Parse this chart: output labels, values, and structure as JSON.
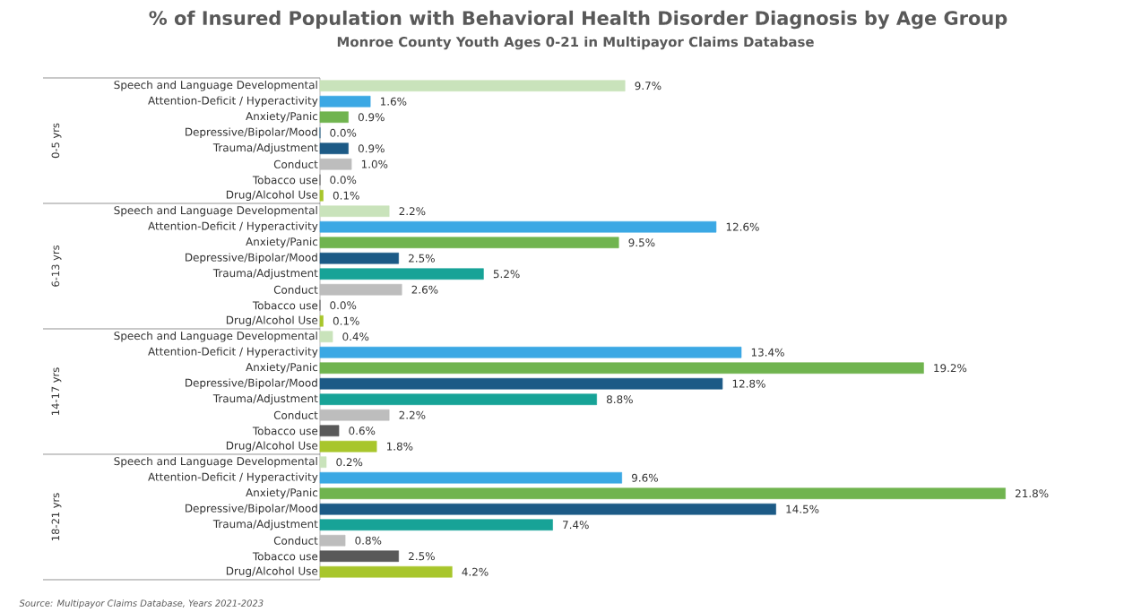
{
  "chart_data": [
    {
      "type": "bar",
      "orientation": "horizontal",
      "title": "% of Insured Population with Behavioral Health Disorder Diagnosis by Age Group",
      "subtitle": "Monroe County Youth Ages 0-21 in Multipayor Claims Database",
      "ylabel": "0-5 yrs",
      "categories": [
        "Speech and Language Developmental",
        "Attention-Deficit / Hyperactivity",
        "Anxiety/Panic",
        "Depressive/Bipolar/Mood",
        "Trauma/Adjustment",
        "Conduct",
        "Tobacco use",
        "Drug/Alcohol Use"
      ],
      "values": [
        9.7,
        1.6,
        0.9,
        0.0,
        0.9,
        1.0,
        0.0,
        0.1
      ],
      "value_labels": [
        "9.7%",
        "1.6%",
        "0.9%",
        "0.0%",
        "0.9%",
        "1.0%",
        "0.0%",
        "0.1%"
      ],
      "colors": [
        "#c9e3bb",
        "#3ba8e4",
        "#70b44f",
        "#1c5a86",
        "#1c5a86",
        "#bdbdbd",
        "#595959",
        "#a8c62c"
      ],
      "tick_labels": "y"
    },
    {
      "type": "bar",
      "orientation": "horizontal",
      "ylabel": "6-13 yrs",
      "categories": [
        "Speech and Language Developmental",
        "Attention-Deficit / Hyperactivity",
        "Anxiety/Panic",
        "Depressive/Bipolar/Mood",
        "Trauma/Adjustment",
        "Conduct",
        "Tobacco use",
        "Drug/Alcohol Use"
      ],
      "values": [
        2.2,
        12.6,
        9.5,
        2.5,
        5.2,
        2.6,
        0.0,
        0.1
      ],
      "value_labels": [
        "2.2%",
        "12.6%",
        "9.5%",
        "2.5%",
        "5.2%",
        "2.6%",
        "0.0%",
        "0.1%"
      ],
      "colors": [
        "#c9e3bb",
        "#3ba8e4",
        "#70b44f",
        "#1c5a86",
        "#17a397",
        "#bdbdbd",
        "#595959",
        "#a8c62c"
      ],
      "tick_labels": "y"
    },
    {
      "type": "bar",
      "orientation": "horizontal",
      "ylabel": "14-17 yrs",
      "categories": [
        "Speech and Language Developmental",
        "Attention-Deficit / Hyperactivity",
        "Anxiety/Panic",
        "Depressive/Bipolar/Mood",
        "Trauma/Adjustment",
        "Conduct",
        "Tobacco use",
        "Drug/Alcohol Use"
      ],
      "values": [
        0.4,
        13.4,
        19.2,
        12.8,
        8.8,
        2.2,
        0.6,
        1.8
      ],
      "value_labels": [
        "0.4%",
        "13.4%",
        "19.2%",
        "12.8%",
        "8.8%",
        "2.2%",
        "0.6%",
        "1.8%"
      ],
      "colors": [
        "#c9e3bb",
        "#3ba8e4",
        "#70b44f",
        "#1c5a86",
        "#17a397",
        "#bdbdbd",
        "#595959",
        "#a8c62c"
      ],
      "tick_labels": "y"
    },
    {
      "type": "bar",
      "orientation": "horizontal",
      "ylabel": "18-21 yrs",
      "categories": [
        "Speech and Language Developmental",
        "Attention-Deficit / Hyperactivity",
        "Anxiety/Panic",
        "Depressive/Bipolar/Mood",
        "Trauma/Adjustment",
        "Conduct",
        "Tobacco use",
        "Drug/Alcohol Use"
      ],
      "values": [
        0.2,
        9.6,
        21.8,
        14.5,
        7.4,
        0.8,
        2.5,
        4.2
      ],
      "value_labels": [
        "0.2%",
        "9.6%",
        "21.8%",
        "14.5%",
        "7.4%",
        "0.8%",
        "2.5%",
        "4.2%"
      ],
      "colors": [
        "#c9e3bb",
        "#3ba8e4",
        "#70b44f",
        "#1c5a86",
        "#17a397",
        "#bdbdbd",
        "#595959",
        "#a8c62c"
      ],
      "tick_labels": "y",
      "annotations": [
        "Source: Multipayor Claims Database, Years 2021-2023"
      ]
    }
  ]
}
